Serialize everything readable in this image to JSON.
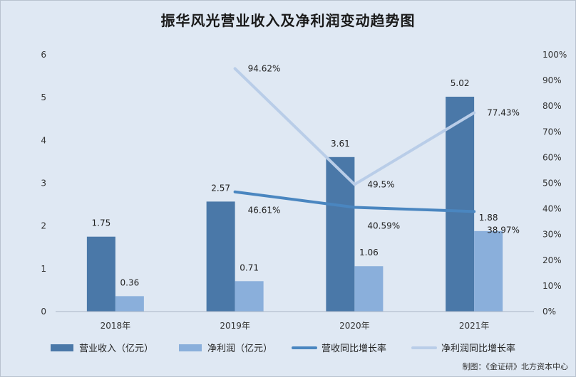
{
  "chart_data": {
    "type": "bar",
    "title": "振华风光营业收入及净利润变动趋势图",
    "categories": [
      "2018年",
      "2019年",
      "2020年",
      "2021年"
    ],
    "series": [
      {
        "name": "营业收入（亿元）",
        "kind": "bar",
        "axis": "left",
        "color": "#4a78a8",
        "values": [
          1.75,
          2.57,
          3.61,
          5.02
        ],
        "labels": [
          "1.75",
          "2.57",
          "3.61",
          "5.02"
        ]
      },
      {
        "name": "净利润（亿元）",
        "kind": "bar",
        "axis": "left",
        "color": "#8aafdb",
        "values": [
          0.36,
          0.71,
          1.06,
          1.88
        ],
        "labels": [
          "0.36",
          "0.71",
          "1.06",
          "1.88"
        ]
      },
      {
        "name": "营收同比增长率",
        "kind": "line",
        "axis": "right",
        "color": "#4a86c0",
        "values": [
          null,
          46.61,
          40.59,
          38.97
        ],
        "labels": [
          null,
          "46.61%",
          "40.59%",
          "38.97%"
        ]
      },
      {
        "name": "净利润同比增长率",
        "kind": "line",
        "axis": "right",
        "color": "#b9cde8",
        "values": [
          null,
          94.62,
          49.5,
          77.43
        ],
        "labels": [
          null,
          "94.62%",
          "49.5%",
          "77.43%"
        ]
      }
    ],
    "y_left": {
      "ylim": [
        0,
        6
      ],
      "ticks": [
        "0",
        "1",
        "2",
        "3",
        "4",
        "5",
        "6"
      ]
    },
    "y_right": {
      "ylim": [
        0,
        100
      ],
      "ticks": [
        "0%",
        "10%",
        "20%",
        "30%",
        "40%",
        "50%",
        "60%",
        "70%",
        "80%",
        "90%",
        "100%"
      ]
    },
    "grid": false,
    "legend": "bottom"
  },
  "credit": "制图：《金证研》北方资本中心"
}
